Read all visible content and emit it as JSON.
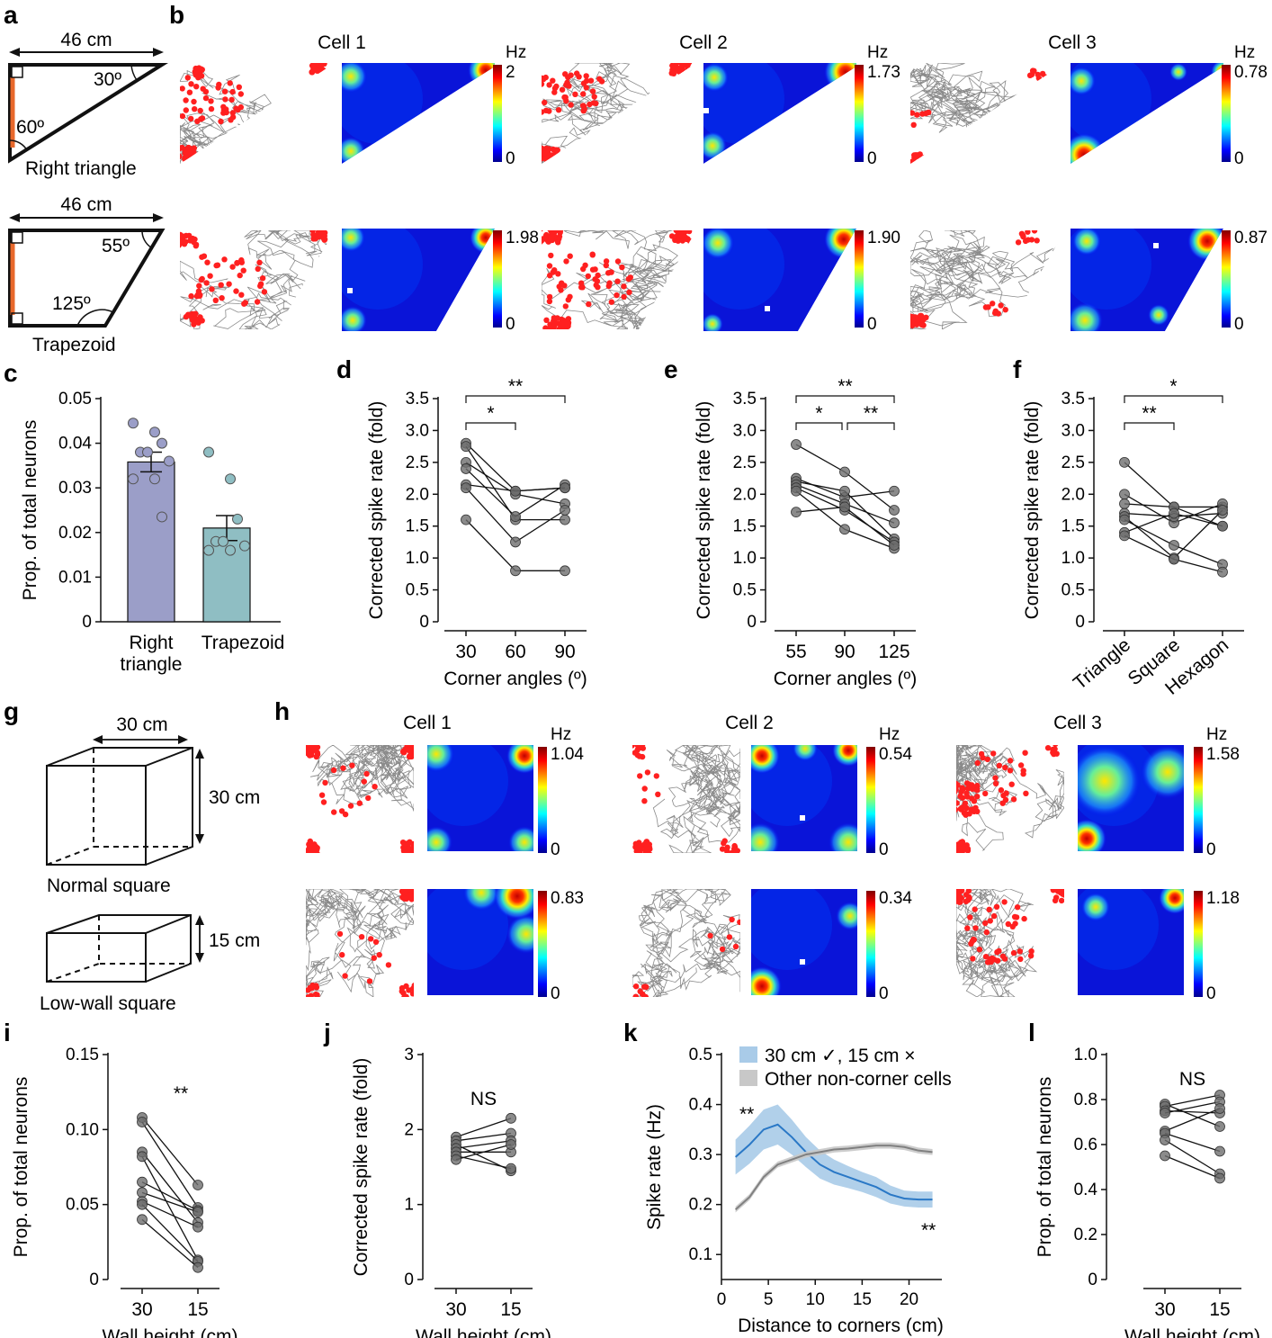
{
  "panels": {
    "a": {
      "letter": "a",
      "width_label": "46 cm",
      "triangle_angle1": "30º",
      "triangle_angle2": "60º",
      "triangle_name": "Right triangle",
      "trap_width_label": "46 cm",
      "trap_angle1": "55º",
      "trap_angle2": "125º",
      "trap_name": "Trapezoid"
    },
    "b": {
      "letter": "b",
      "cells": [
        "Cell 1",
        "Cell 2",
        "Cell 3"
      ],
      "unit": "Hz",
      "max_rates_triangle": [
        "2",
        "1.73",
        "0.78"
      ],
      "max_rates_trapezoid": [
        "1.98",
        "1.90",
        "0.87"
      ],
      "min_rate": "0"
    },
    "g": {
      "letter": "g",
      "width_label": "30 cm",
      "height_label": "30 cm",
      "normal_name": "Normal square",
      "low_height_label": "15 cm",
      "low_name": "Low-wall square"
    },
    "h": {
      "letter": "h",
      "cells": [
        "Cell 1",
        "Cell 2",
        "Cell 3"
      ],
      "unit": "Hz",
      "max_rates_normal": [
        "1.04",
        "0.54",
        "1.58"
      ],
      "max_rates_low": [
        "0.83",
        "0.34",
        "1.18"
      ],
      "min_rate": "0"
    }
  },
  "colors": {
    "accent_bar1": "#9b9ec8",
    "accent_bar2": "#8fbec3",
    "dot": "#ff2020",
    "trace": "#8a8a8a",
    "blue_line": "#2a78c6",
    "blue_band": "#a9cbe8",
    "gray_band": "#c8c8c8",
    "orange_wall": "#e8682b"
  },
  "chart_data": [
    {
      "id": "c",
      "letter": "c",
      "type": "bar",
      "categories": [
        "Right triangle",
        "Trapezoid"
      ],
      "values": [
        0.0358,
        0.021
      ],
      "sem": [
        0.0022,
        0.0028
      ],
      "points": [
        [
          0.0445,
          0.0425,
          0.04,
          0.038,
          0.038,
          0.036,
          0.032,
          0.032,
          0.0235
        ],
        [
          0.038,
          0.032,
          0.023,
          0.018,
          0.018,
          0.017,
          0.016,
          0.016
        ]
      ],
      "ylabel": "Prop. of total neurons",
      "ylim": [
        0,
        0.05
      ],
      "yticks": [
        "0",
        "0.01",
        "0.02",
        "0.03",
        "0.04",
        "0.05"
      ]
    },
    {
      "id": "d",
      "letter": "d",
      "type": "line",
      "x": [
        "30",
        "60",
        "90"
      ],
      "xlabel": "Corner angles (º)",
      "ylabel": "Corrected spike rate (fold)",
      "ylim": [
        0,
        3.5
      ],
      "yticks": [
        "0",
        "0.5",
        "1.0",
        "1.5",
        "2.0",
        "2.5",
        "3.0",
        "3.5"
      ],
      "series": [
        [
          2.8,
          2.05,
          2.1
        ],
        [
          2.75,
          1.6,
          1.6
        ],
        [
          2.5,
          2.0,
          1.85
        ],
        [
          2.4,
          1.65,
          2.15
        ],
        [
          2.15,
          2.05,
          2.1
        ],
        [
          2.1,
          1.25,
          1.75
        ],
        [
          1.6,
          0.8,
          0.8
        ]
      ],
      "sig": [
        {
          "from": 0,
          "to": 1,
          "label": "*"
        },
        {
          "from": 0,
          "to": 2,
          "label": "**"
        }
      ]
    },
    {
      "id": "e",
      "letter": "e",
      "type": "line",
      "x": [
        "55",
        "90",
        "125"
      ],
      "xlabel": "Corner angles (º)",
      "ylabel": "Corrected spike rate (fold)",
      "ylim": [
        0,
        3.5
      ],
      "yticks": [
        "0",
        "0.5",
        "1.0",
        "1.5",
        "2.0",
        "2.5",
        "3.0",
        "3.5"
      ],
      "series": [
        [
          2.78,
          2.35,
          1.75
        ],
        [
          2.25,
          1.95,
          2.05
        ],
        [
          2.2,
          2.05,
          1.3
        ],
        [
          2.15,
          1.85,
          1.55
        ],
        [
          2.1,
          1.75,
          1.25
        ],
        [
          2.05,
          1.45,
          1.15
        ],
        [
          1.72,
          1.8,
          1.2
        ]
      ],
      "sig": [
        {
          "from": 0,
          "to": 1,
          "label": "*"
        },
        {
          "from": 1,
          "to": 2,
          "label": "**"
        },
        {
          "from": 0,
          "to": 2,
          "label": "**"
        }
      ]
    },
    {
      "id": "f",
      "letter": "f",
      "type": "line",
      "x": [
        "Triangle",
        "Square",
        "Hexagon"
      ],
      "xlabel": "",
      "ylabel": "Corrected spike rate (fold)",
      "ylim": [
        0,
        3.5
      ],
      "yticks": [
        "0",
        "0.5",
        "1.0",
        "1.5",
        "2.0",
        "2.5",
        "3.0",
        "3.5"
      ],
      "series": [
        [
          2.5,
          1.8,
          1.8
        ],
        [
          2.0,
          1.55,
          1.85
        ],
        [
          1.85,
          1.8,
          1.5
        ],
        [
          1.7,
          1.65,
          1.7
        ],
        [
          1.65,
          1.0,
          1.75
        ],
        [
          1.6,
          1.2,
          0.9
        ],
        [
          1.4,
          1.7,
          1.5
        ],
        [
          1.35,
          0.98,
          0.78
        ]
      ],
      "sig": [
        {
          "from": 0,
          "to": 1,
          "label": "**"
        },
        {
          "from": 0,
          "to": 2,
          "label": "*"
        }
      ]
    },
    {
      "id": "i",
      "letter": "i",
      "type": "line",
      "x": [
        "30",
        "15"
      ],
      "xlabel": "Wall height (cm)",
      "ylabel": "Prop. of total neurons",
      "ylim": [
        0,
        0.15
      ],
      "yticks": [
        "0",
        "0.05",
        "0.10",
        "0.15"
      ],
      "series": [
        [
          0.108,
          0.063
        ],
        [
          0.105,
          0.048
        ],
        [
          0.085,
          0.038
        ],
        [
          0.082,
          0.013
        ],
        [
          0.065,
          0.046
        ],
        [
          0.058,
          0.045
        ],
        [
          0.052,
          0.035
        ],
        [
          0.05,
          0.012
        ],
        [
          0.04,
          0.008
        ]
      ],
      "annotation": "**"
    },
    {
      "id": "j",
      "letter": "j",
      "type": "line",
      "x": [
        "30",
        "15"
      ],
      "xlabel": "Wall height (cm)",
      "ylabel": "Corrected spike rate (fold)",
      "ylim": [
        0,
        3
      ],
      "yticks": [
        "0",
        "1",
        "2",
        "3"
      ],
      "series": [
        [
          1.9,
          2.15
        ],
        [
          1.85,
          1.95
        ],
        [
          1.8,
          1.45
        ],
        [
          1.75,
          1.85
        ],
        [
          1.7,
          1.7
        ],
        [
          1.65,
          1.48
        ],
        [
          1.6,
          1.8
        ]
      ],
      "annotation": "NS"
    },
    {
      "id": "k",
      "letter": "k",
      "type": "line",
      "xlabel": "Distance to corners (cm)",
      "ylabel": "Spike rate (Hz)",
      "xlim": [
        0,
        23.5
      ],
      "ylim": [
        0.05,
        0.5
      ],
      "xticks": [
        "0",
        "5",
        "10",
        "15",
        "20"
      ],
      "yticks": [
        "0.1",
        "0.2",
        "0.3",
        "0.4",
        "0.5"
      ],
      "legend": [
        "30 cm ✓, 15 cm ×",
        "Other non-corner cells"
      ],
      "series": [
        {
          "name": "30 cm ✓, 15 cm ×",
          "x": [
            1.5,
            3,
            4.5,
            6,
            7.5,
            9,
            10.5,
            12,
            13.5,
            15,
            16.5,
            18,
            19.5,
            21,
            22.5
          ],
          "values": [
            0.295,
            0.32,
            0.35,
            0.36,
            0.335,
            0.305,
            0.28,
            0.265,
            0.255,
            0.245,
            0.235,
            0.22,
            0.212,
            0.21,
            0.21
          ],
          "band": [
            0.035,
            0.038,
            0.04,
            0.04,
            0.035,
            0.03,
            0.028,
            0.025,
            0.022,
            0.02,
            0.02,
            0.018,
            0.016,
            0.016,
            0.016
          ]
        },
        {
          "name": "Other non-corner cells",
          "x": [
            1.5,
            3,
            4.5,
            6,
            7.5,
            9,
            10.5,
            12,
            13.5,
            15,
            16.5,
            18,
            19.5,
            21,
            22.5
          ],
          "values": [
            0.19,
            0.215,
            0.255,
            0.28,
            0.29,
            0.3,
            0.305,
            0.31,
            0.312,
            0.315,
            0.318,
            0.318,
            0.315,
            0.308,
            0.305
          ],
          "band": [
            0.006,
            0.006,
            0.006,
            0.006,
            0.006,
            0.006,
            0.006,
            0.006,
            0.006,
            0.006,
            0.006,
            0.006,
            0.006,
            0.006,
            0.006
          ]
        }
      ],
      "annotations": [
        "**",
        "**"
      ]
    },
    {
      "id": "l",
      "letter": "l",
      "type": "line",
      "x": [
        "30",
        "15"
      ],
      "xlabel": "Wall height (cm)",
      "ylabel": "Prop. of total neurons",
      "ylim": [
        0,
        1.0
      ],
      "yticks": [
        "0",
        "0.2",
        "0.4",
        "0.6",
        "0.8",
        "1.0"
      ],
      "series": [
        [
          0.78,
          0.68
        ],
        [
          0.77,
          0.82
        ],
        [
          0.75,
          0.74
        ],
        [
          0.74,
          0.79
        ],
        [
          0.66,
          0.76
        ],
        [
          0.65,
          0.57
        ],
        [
          0.62,
          0.47
        ],
        [
          0.55,
          0.45
        ]
      ],
      "annotation": "NS"
    }
  ]
}
